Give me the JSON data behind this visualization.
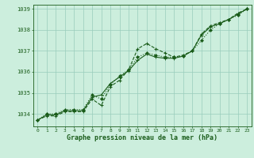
{
  "background_color": "#cceedd",
  "grid_color": "#99ccbb",
  "line_color": "#1a5c1a",
  "xlabel": "Graphe pression niveau de la mer (hPa)",
  "xlabel_color": "#1a5c1a",
  "tick_color": "#1a5c1a",
  "xlim": [
    -0.5,
    23.5
  ],
  "ylim": [
    1033.4,
    1039.2
  ],
  "yticks": [
    1034,
    1035,
    1036,
    1037,
    1038,
    1039
  ],
  "xticks": [
    0,
    1,
    2,
    3,
    4,
    5,
    6,
    7,
    8,
    9,
    10,
    11,
    12,
    13,
    14,
    15,
    16,
    17,
    18,
    19,
    20,
    21,
    22,
    23
  ],
  "series1_x": [
    0,
    1,
    2,
    3,
    4,
    5,
    6,
    7,
    8,
    9,
    10,
    11,
    12,
    13,
    14,
    15,
    16,
    17,
    18,
    19,
    20,
    21,
    22,
    23
  ],
  "series1_y": [
    1033.7,
    1033.9,
    1033.9,
    1034.1,
    1034.1,
    1034.1,
    1034.7,
    1034.4,
    1035.3,
    1035.6,
    1036.1,
    1037.1,
    1037.35,
    1037.1,
    1036.9,
    1036.7,
    1036.8,
    1037.0,
    1037.8,
    1038.2,
    1038.35,
    1038.5,
    1038.8,
    1039.0
  ],
  "series2_x": [
    0,
    1,
    2,
    3,
    4,
    5,
    6,
    7,
    8,
    9,
    10,
    11,
    12,
    13,
    14,
    15,
    16,
    17,
    18,
    19,
    20,
    21,
    22,
    23
  ],
  "series2_y": [
    1033.7,
    1034.0,
    1034.0,
    1034.2,
    1034.2,
    1034.2,
    1034.9,
    1034.7,
    1035.4,
    1035.8,
    1036.1,
    1036.7,
    1036.9,
    1036.8,
    1036.7,
    1036.7,
    1036.75,
    1037.0,
    1037.5,
    1038.0,
    1038.3,
    1038.5,
    1038.7,
    1039.0
  ],
  "series3_x": [
    0,
    1,
    2,
    3,
    4,
    5,
    6,
    7,
    8,
    9,
    10,
    11,
    12,
    13,
    14,
    15,
    16,
    17,
    18,
    19,
    20,
    21,
    22,
    23
  ],
  "series3_y": [
    1033.7,
    1033.95,
    1033.95,
    1034.15,
    1034.15,
    1034.15,
    1034.8,
    1034.9,
    1035.45,
    1035.75,
    1036.05,
    1036.55,
    1036.85,
    1036.7,
    1036.65,
    1036.65,
    1036.75,
    1037.0,
    1037.75,
    1038.15,
    1038.3,
    1038.5,
    1038.75,
    1039.0
  ]
}
